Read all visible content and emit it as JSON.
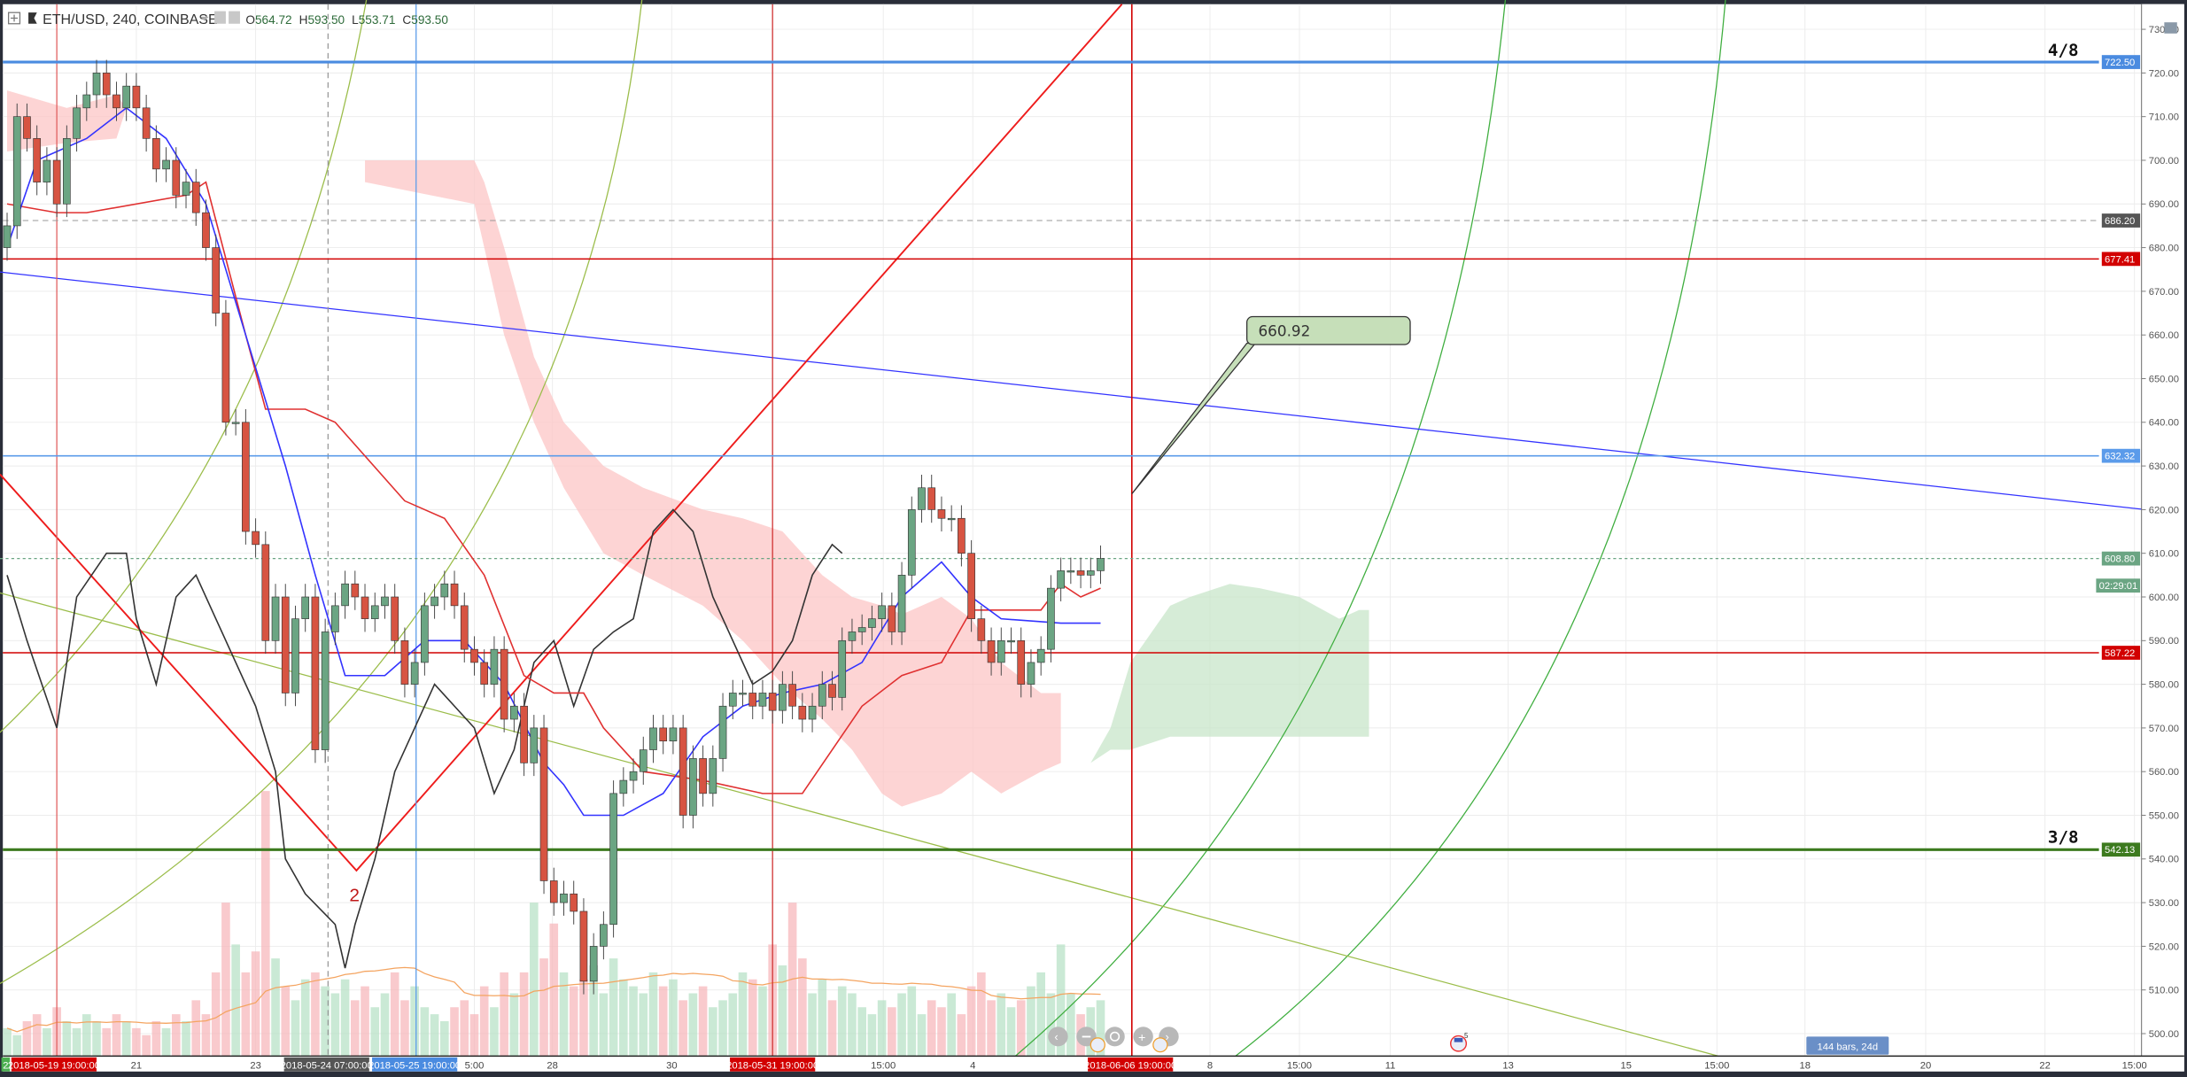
{
  "header": {
    "symbol": "ETH/USD, 240, COINBASE",
    "open_label": "O",
    "open": "564.72",
    "high_label": "H",
    "high": "593.50",
    "low_label": "L",
    "low": "553.71",
    "close_label": "C",
    "close": "593.50"
  },
  "annotations": {
    "callout": "660.92",
    "wave_label": "2",
    "murrey_top": "4/8",
    "murrey_bottom": "3/8",
    "range_measure": "144 bars, 24d",
    "event_count": "5"
  },
  "price_tags": {
    "l722": {
      "text": "722.50",
      "color": "#4a8be0"
    },
    "l686": {
      "text": "686.20",
      "color": "#555555"
    },
    "l677": {
      "text": "677.41",
      "color": "#d20000"
    },
    "l632": {
      "text": "632.32",
      "color": "#5b9bea"
    },
    "l608": {
      "text": "608.80",
      "color": "#6ba583"
    },
    "countdown": {
      "text": "02:29:01",
      "color": "#6ba583"
    },
    "l587": {
      "text": "587.22",
      "color": "#d20000"
    },
    "l542": {
      "text": "542.13",
      "color": "#3c7a1e"
    }
  },
  "time_axis": [
    {
      "label": "2",
      "style": "green"
    },
    {
      "label": "2018-05-19 19:00:00",
      "style": "red"
    },
    {
      "label": "21",
      "style": "plain"
    },
    {
      "label": "23",
      "style": "plain"
    },
    {
      "label": "2018-05-24 07:00:00",
      "style": "dark"
    },
    {
      "label": "2018-05-25 19:00:00",
      "style": "blue"
    },
    {
      "label": "5:00",
      "style": "plain"
    },
    {
      "label": "28",
      "style": "plain"
    },
    {
      "label": "30",
      "style": "plain"
    },
    {
      "label": "2018-05-31 19:00:00",
      "style": "red"
    },
    {
      "label": "15:00",
      "style": "plain"
    },
    {
      "label": "4",
      "style": "plain"
    },
    {
      "label": "2018-06-06 19:00:00",
      "style": "red"
    },
    {
      "label": "8",
      "style": "plain"
    },
    {
      "label": "15:00",
      "style": "plain"
    },
    {
      "label": "11",
      "style": "plain"
    },
    {
      "label": "13",
      "style": "plain"
    },
    {
      "label": "15",
      "style": "plain"
    },
    {
      "label": "15:00",
      "style": "plain"
    },
    {
      "label": "18",
      "style": "plain"
    },
    {
      "label": "20",
      "style": "plain"
    },
    {
      "label": "22",
      "style": "plain"
    },
    {
      "label": "15:00",
      "style": "plain"
    }
  ],
  "colors": {
    "up": "#6ba583",
    "down": "#d75442",
    "tenkan": "#3333ff",
    "kijun": "#e03030",
    "lagging": "#333333",
    "cloud_bear": "#fcc6c6",
    "cloud_bull": "#c8e6c9"
  },
  "chart_data": {
    "type": "candlestick",
    "title": "ETH/USD, 240, COINBASE",
    "ylim": [
      495,
      733
    ],
    "y_ticks": [
      "730.00",
      "720.00",
      "710.00",
      "700.00",
      "690.00",
      "680.00",
      "670.00",
      "660.00",
      "650.00",
      "640.00",
      "630.00",
      "620.00",
      "610.00",
      "600.00",
      "590.00",
      "580.00",
      "570.00",
      "560.00",
      "550.00",
      "540.00",
      "530.00",
      "520.00",
      "510.00",
      "500.00"
    ],
    "grid": true,
    "close": [
      685,
      710,
      705,
      695,
      700,
      690,
      705,
      712,
      715,
      720,
      715,
      712,
      717,
      712,
      705,
      698,
      700,
      692,
      695,
      688,
      680,
      665,
      640,
      640,
      615,
      612,
      590,
      600,
      578,
      595,
      600,
      565,
      592,
      598,
      603,
      600,
      595,
      598,
      600,
      590,
      580,
      585,
      598,
      600,
      603,
      598,
      588,
      585,
      580,
      588,
      572,
      575,
      562,
      570,
      535,
      530,
      532,
      528,
      512,
      520,
      525,
      555,
      558,
      560,
      565,
      570,
      567,
      570,
      550,
      563,
      555,
      563,
      575,
      578,
      578,
      575,
      578,
      574,
      580,
      575,
      572,
      575,
      580,
      577,
      590,
      592,
      593,
      595,
      598,
      592,
      605,
      620,
      625,
      620,
      618,
      618,
      610,
      595,
      590,
      585,
      590,
      590,
      580,
      585,
      588,
      602,
      606,
      606,
      605,
      606,
      608.8
    ],
    "volume": [
      20,
      15,
      25,
      30,
      20,
      35,
      25,
      20,
      30,
      25,
      20,
      30,
      25,
      20,
      15,
      25,
      20,
      30,
      25,
      40,
      30,
      60,
      110,
      80,
      60,
      75,
      190,
      70,
      50,
      40,
      55,
      60,
      50,
      45,
      55,
      40,
      50,
      35,
      45,
      60,
      40,
      50,
      35,
      30,
      25,
      35,
      40,
      30,
      50,
      35,
      60,
      45,
      60,
      110,
      70,
      95,
      60,
      50,
      55,
      65,
      45,
      70,
      55,
      50,
      45,
      60,
      50,
      55,
      40,
      45,
      50,
      35,
      40,
      45,
      60,
      55,
      50,
      80,
      65,
      110,
      70,
      45,
      55,
      40,
      50,
      45,
      35,
      30,
      40,
      35,
      45,
      50,
      30,
      40,
      35,
      45,
      30,
      50,
      60,
      40,
      45,
      35,
      40,
      50,
      60,
      45,
      80,
      45,
      30,
      35,
      40
    ],
    "tenkan": [
      [
        0,
        680
      ],
      [
        3,
        700
      ],
      [
        8,
        705
      ],
      [
        12,
        712
      ],
      [
        16,
        705
      ],
      [
        20,
        690
      ],
      [
        24,
        660
      ],
      [
        28,
        630
      ],
      [
        31,
        605
      ],
      [
        34,
        582
      ],
      [
        38,
        582
      ],
      [
        42,
        590
      ],
      [
        46,
        590
      ],
      [
        50,
        580
      ],
      [
        54,
        562
      ],
      [
        56,
        557
      ],
      [
        58,
        550
      ],
      [
        62,
        550
      ],
      [
        66,
        555
      ],
      [
        70,
        568
      ],
      [
        74,
        575
      ],
      [
        78,
        578
      ],
      [
        82,
        580
      ],
      [
        86,
        585
      ],
      [
        90,
        600
      ],
      [
        94,
        608
      ],
      [
        97,
        600
      ],
      [
        100,
        595
      ],
      [
        106,
        594
      ],
      [
        110,
        594
      ]
    ],
    "kijun": [
      [
        0,
        690
      ],
      [
        5,
        688
      ],
      [
        8,
        688
      ],
      [
        18,
        692
      ],
      [
        20,
        695
      ],
      [
        24,
        660
      ],
      [
        26,
        643
      ],
      [
        30,
        643
      ],
      [
        33,
        640
      ],
      [
        40,
        622
      ],
      [
        44,
        618
      ],
      [
        48,
        605
      ],
      [
        52,
        582
      ],
      [
        55,
        578
      ],
      [
        58,
        578
      ],
      [
        60,
        570
      ],
      [
        64,
        560
      ],
      [
        70,
        558
      ],
      [
        76,
        555
      ],
      [
        80,
        555
      ],
      [
        86,
        575
      ],
      [
        90,
        582
      ],
      [
        94,
        585
      ],
      [
        97,
        597
      ],
      [
        100,
        597
      ],
      [
        104,
        597
      ],
      [
        106,
        603
      ],
      [
        108,
        600
      ],
      [
        110,
        602
      ]
    ],
    "lagging": [
      [
        0,
        605
      ],
      [
        2,
        590
      ],
      [
        5,
        570
      ],
      [
        7,
        600
      ],
      [
        10,
        610
      ],
      [
        12,
        610
      ],
      [
        13,
        595
      ],
      [
        15,
        580
      ],
      [
        17,
        600
      ],
      [
        19,
        605
      ],
      [
        21,
        595
      ],
      [
        23,
        585
      ],
      [
        25,
        575
      ],
      [
        27,
        560
      ],
      [
        28,
        540
      ],
      [
        30,
        532
      ],
      [
        33,
        525
      ],
      [
        34,
        515
      ],
      [
        35,
        525
      ],
      [
        37,
        540
      ],
      [
        39,
        560
      ],
      [
        41,
        570
      ],
      [
        43,
        580
      ],
      [
        45,
        575
      ],
      [
        47,
        570
      ],
      [
        49,
        555
      ],
      [
        51,
        565
      ],
      [
        53,
        585
      ],
      [
        55,
        590
      ],
      [
        57,
        575
      ],
      [
        59,
        588
      ],
      [
        61,
        592
      ],
      [
        63,
        595
      ],
      [
        65,
        615
      ],
      [
        67,
        620
      ],
      [
        69,
        615
      ],
      [
        71,
        600
      ],
      [
        73,
        590
      ],
      [
        75,
        580
      ],
      [
        77,
        583
      ],
      [
        79,
        590
      ],
      [
        81,
        605
      ],
      [
        83,
        612
      ],
      [
        84,
        610
      ]
    ],
    "cloud_bear": [
      [
        0,
        716,
        702
      ],
      [
        6,
        712,
        704
      ],
      [
        11,
        715,
        705
      ],
      [
        12,
        712,
        712
      ],
      [
        36,
        700,
        695
      ],
      [
        47,
        700,
        690
      ],
      [
        48,
        695,
        680
      ],
      [
        50,
        680,
        660
      ],
      [
        53,
        655,
        640
      ],
      [
        56,
        640,
        625
      ],
      [
        60,
        630,
        610
      ],
      [
        64,
        625,
        605
      ],
      [
        70,
        620,
        598
      ],
      [
        74,
        618,
        590
      ],
      [
        78,
        615,
        580
      ],
      [
        82,
        605,
        572
      ],
      [
        85,
        600,
        565
      ],
      [
        88,
        598,
        555
      ],
      [
        90,
        596,
        552
      ],
      [
        94,
        600,
        555
      ],
      [
        97,
        595,
        560
      ],
      [
        100,
        585,
        555
      ],
      [
        104,
        578,
        560
      ],
      [
        106,
        578,
        562
      ]
    ],
    "cloud_bull": [
      [
        109,
        562,
        562
      ],
      [
        111,
        570,
        565
      ],
      [
        113,
        585,
        565
      ],
      [
        117,
        598,
        568
      ],
      [
        119,
        600,
        568
      ],
      [
        123,
        603,
        568
      ],
      [
        126,
        602,
        568
      ],
      [
        130,
        600,
        568
      ],
      [
        134,
        595,
        568
      ],
      [
        136,
        597,
        568
      ],
      [
        137,
        597,
        568
      ]
    ],
    "horizontal_levels": [
      722.5,
      686.2,
      677.41,
      632.32,
      608.8,
      587.22,
      542.13
    ]
  }
}
